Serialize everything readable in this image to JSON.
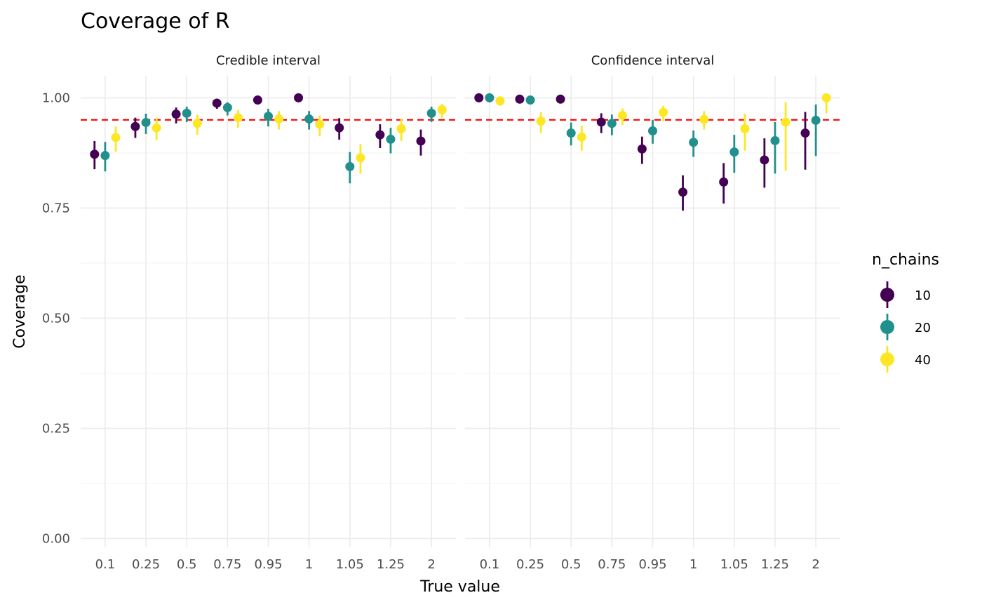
{
  "chart_data": {
    "type": "scatter",
    "title": "Coverage of R",
    "xlabel": "True value",
    "ylabel": "Coverage",
    "categories": [
      "0.1",
      "0.25",
      "0.5",
      "0.75",
      "0.95",
      "1",
      "1.05",
      "1.25",
      "2"
    ],
    "yticks": [
      "0.00",
      "0.25",
      "0.50",
      "0.75",
      "1.00"
    ],
    "ylim": [
      -0.02,
      1.05
    ],
    "reference_line": 0.95,
    "legend": {
      "title": "n_chains",
      "placement": "right",
      "entries": [
        {
          "label": "10",
          "color": "#440154"
        },
        {
          "label": "20",
          "color": "#21908C"
        },
        {
          "label": "40",
          "color": "#FDE725"
        }
      ]
    },
    "panels": [
      {
        "title": "Credible interval",
        "points": [
          {
            "x": 0.74,
            "y": 0.872,
            "lo": 0.838,
            "hi": 0.902,
            "c": 0
          },
          {
            "x": 1.0,
            "y": 0.869,
            "lo": 0.833,
            "hi": 0.9,
            "c": 1
          },
          {
            "x": 1.26,
            "y": 0.91,
            "lo": 0.878,
            "hi": 0.935,
            "c": 2
          },
          {
            "x": 1.74,
            "y": 0.935,
            "lo": 0.909,
            "hi": 0.955,
            "c": 0
          },
          {
            "x": 2.0,
            "y": 0.944,
            "lo": 0.918,
            "hi": 0.964,
            "c": 1
          },
          {
            "x": 2.26,
            "y": 0.932,
            "lo": 0.904,
            "hi": 0.955,
            "c": 2
          },
          {
            "x": 2.74,
            "y": 0.963,
            "lo": 0.942,
            "hi": 0.978,
            "c": 0
          },
          {
            "x": 3.0,
            "y": 0.965,
            "lo": 0.945,
            "hi": 0.98,
            "c": 1
          },
          {
            "x": 3.26,
            "y": 0.942,
            "lo": 0.916,
            "hi": 0.962,
            "c": 2
          },
          {
            "x": 3.74,
            "y": 0.988,
            "lo": 0.975,
            "hi": 0.995,
            "c": 0
          },
          {
            "x": 4.0,
            "y": 0.978,
            "lo": 0.96,
            "hi": 0.99,
            "c": 1
          },
          {
            "x": 4.26,
            "y": 0.955,
            "lo": 0.932,
            "hi": 0.972,
            "c": 2
          },
          {
            "x": 4.74,
            "y": 0.995,
            "lo": 0.985,
            "hi": 0.999,
            "c": 0
          },
          {
            "x": 5.0,
            "y": 0.958,
            "lo": 0.935,
            "hi": 0.975,
            "c": 1
          },
          {
            "x": 5.26,
            "y": 0.952,
            "lo": 0.928,
            "hi": 0.97,
            "c": 2
          },
          {
            "x": 5.74,
            "y": 1.0,
            "lo": 0.995,
            "hi": 1.0,
            "c": 0
          },
          {
            "x": 6.0,
            "y": 0.952,
            "lo": 0.928,
            "hi": 0.97,
            "c": 1
          },
          {
            "x": 6.26,
            "y": 0.94,
            "lo": 0.913,
            "hi": 0.96,
            "c": 2
          },
          {
            "x": 6.74,
            "y": 0.932,
            "lo": 0.905,
            "hi": 0.954,
            "c": 0
          },
          {
            "x": 7.0,
            "y": 0.844,
            "lo": 0.806,
            "hi": 0.877,
            "c": 1
          },
          {
            "x": 7.26,
            "y": 0.864,
            "lo": 0.828,
            "hi": 0.895,
            "c": 2
          },
          {
            "x": 7.74,
            "y": 0.916,
            "lo": 0.886,
            "hi": 0.94,
            "c": 0
          },
          {
            "x": 8.0,
            "y": 0.906,
            "lo": 0.874,
            "hi": 0.932,
            "c": 1
          },
          {
            "x": 8.26,
            "y": 0.93,
            "lo": 0.902,
            "hi": 0.952,
            "c": 2
          },
          {
            "x": 8.74,
            "y": 0.902,
            "lo": 0.869,
            "hi": 0.928,
            "c": 0
          },
          {
            "x": 9.0,
            "y": 0.965,
            "lo": 0.945,
            "hi": 0.98,
            "c": 1
          },
          {
            "x": 9.26,
            "y": 0.973,
            "lo": 0.955,
            "hi": 0.986,
            "c": 2
          }
        ]
      },
      {
        "title": "Confidence interval",
        "points": [
          {
            "x": 0.74,
            "y": 1.0,
            "lo": 0.995,
            "hi": 1.0,
            "c": 0
          },
          {
            "x": 1.0,
            "y": 1.0,
            "lo": 0.995,
            "hi": 1.0,
            "c": 1
          },
          {
            "x": 1.26,
            "y": 0.993,
            "lo": 0.982,
            "hi": 0.998,
            "c": 2
          },
          {
            "x": 1.74,
            "y": 0.997,
            "lo": 0.988,
            "hi": 1.0,
            "c": 0
          },
          {
            "x": 2.0,
            "y": 0.995,
            "lo": 0.985,
            "hi": 0.999,
            "c": 1
          },
          {
            "x": 2.26,
            "y": 0.947,
            "lo": 0.92,
            "hi": 0.967,
            "c": 2
          },
          {
            "x": 2.74,
            "y": 0.997,
            "lo": 0.988,
            "hi": 1.0,
            "c": 0
          },
          {
            "x": 3.0,
            "y": 0.92,
            "lo": 0.892,
            "hi": 0.944,
            "c": 1
          },
          {
            "x": 3.26,
            "y": 0.911,
            "lo": 0.88,
            "hi": 0.937,
            "c": 2
          },
          {
            "x": 3.74,
            "y": 0.945,
            "lo": 0.92,
            "hi": 0.965,
            "c": 0
          },
          {
            "x": 4.0,
            "y": 0.942,
            "lo": 0.915,
            "hi": 0.962,
            "c": 1
          },
          {
            "x": 4.26,
            "y": 0.96,
            "lo": 0.938,
            "hi": 0.976,
            "c": 2
          },
          {
            "x": 4.74,
            "y": 0.884,
            "lo": 0.85,
            "hi": 0.912,
            "c": 0
          },
          {
            "x": 5.0,
            "y": 0.925,
            "lo": 0.896,
            "hi": 0.95,
            "c": 1
          },
          {
            "x": 5.26,
            "y": 0.967,
            "lo": 0.947,
            "hi": 0.982,
            "c": 2
          },
          {
            "x": 5.74,
            "y": 0.786,
            "lo": 0.744,
            "hi": 0.824,
            "c": 0
          },
          {
            "x": 6.0,
            "y": 0.899,
            "lo": 0.866,
            "hi": 0.926,
            "c": 1
          },
          {
            "x": 6.26,
            "y": 0.951,
            "lo": 0.928,
            "hi": 0.97,
            "c": 2
          },
          {
            "x": 6.74,
            "y": 0.809,
            "lo": 0.76,
            "hi": 0.852,
            "c": 0
          },
          {
            "x": 7.0,
            "y": 0.877,
            "lo": 0.83,
            "hi": 0.916,
            "c": 1
          },
          {
            "x": 7.26,
            "y": 0.93,
            "lo": 0.88,
            "hi": 0.964,
            "c": 2
          },
          {
            "x": 7.74,
            "y": 0.859,
            "lo": 0.796,
            "hi": 0.908,
            "c": 0
          },
          {
            "x": 8.0,
            "y": 0.903,
            "lo": 0.828,
            "hi": 0.945,
            "c": 1
          },
          {
            "x": 8.26,
            "y": 0.945,
            "lo": 0.835,
            "hi": 0.99,
            "c": 2
          },
          {
            "x": 8.74,
            "y": 0.92,
            "lo": 0.837,
            "hi": 0.968,
            "c": 0
          },
          {
            "x": 9.0,
            "y": 0.949,
            "lo": 0.868,
            "hi": 0.985,
            "c": 1
          },
          {
            "x": 9.26,
            "y": 1.0,
            "lo": 0.965,
            "hi": 1.0,
            "c": 2
          }
        ]
      }
    ]
  }
}
